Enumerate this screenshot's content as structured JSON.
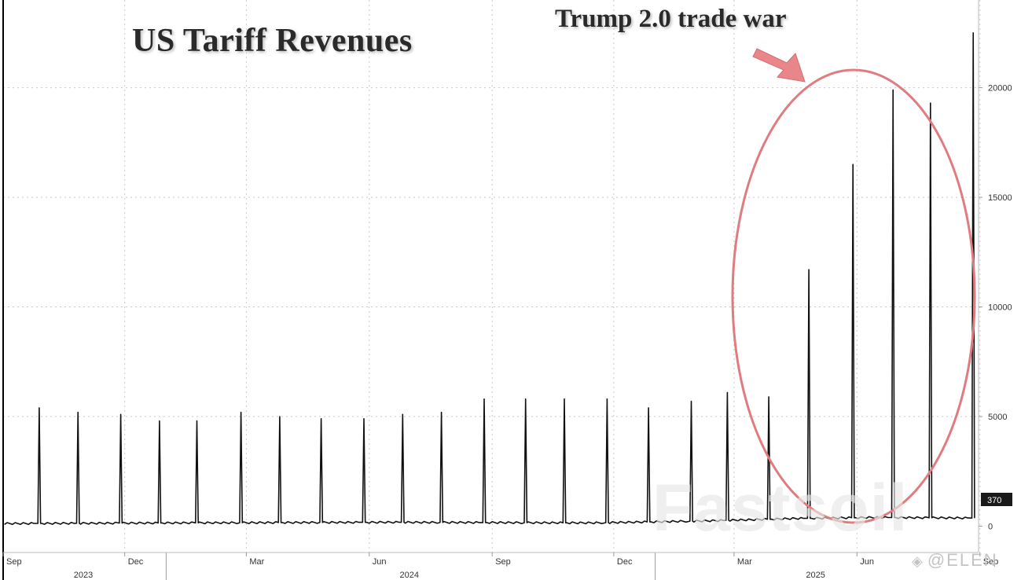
{
  "title": "US Tariff Revenues",
  "annotation": "Trump 2.0 trade war",
  "watermarks": {
    "big": "Fastsoil",
    "corner": "@ELEN",
    "corner_icon": "diamond-logo-icon"
  },
  "colors": {
    "line": "#111111",
    "grid": "#c8c8c8",
    "circle": "#e07c80",
    "arrow": "#e8868a",
    "badge": "#1a1a1a"
  },
  "chart_data": {
    "type": "line",
    "title": "US Tariff Revenues",
    "xlabel": "",
    "ylabel": "",
    "x_range": [
      "2023-09-01",
      "2025-08-31"
    ],
    "ylim": [
      -1200,
      24000
    ],
    "y_ticks": [
      0,
      5000,
      10000,
      15000,
      20000
    ],
    "y_tick_labels": [
      "0",
      "5000",
      "10000",
      "15000",
      "20000"
    ],
    "x_ticks": [
      {
        "date": "2023-09-01",
        "label": "Sep",
        "year": ""
      },
      {
        "date": "2023-12-01",
        "label": "Dec",
        "year": ""
      },
      {
        "date": "2024-03-01",
        "label": "Mar",
        "year": ""
      },
      {
        "date": "2024-06-01",
        "label": "Jun",
        "year": ""
      },
      {
        "date": "2024-09-01",
        "label": "Sep",
        "year": ""
      },
      {
        "date": "2024-12-01",
        "label": "Dec",
        "year": ""
      },
      {
        "date": "2025-03-01",
        "label": "Mar",
        "year": ""
      },
      {
        "date": "2025-06-01",
        "label": "Jun",
        "year": ""
      },
      {
        "date": "2025-09-01",
        "label": "Sep",
        "year": ""
      }
    ],
    "year_labels": [
      {
        "date": "2023-10-31",
        "label": "2023"
      },
      {
        "date": "2024-07-01",
        "label": "2024"
      },
      {
        "date": "2025-05-01",
        "label": "2025"
      }
    ],
    "year_separators": [
      "2024-01-01",
      "2025-01-01"
    ],
    "last_value": 370,
    "last_value_label": "370",
    "grid": true,
    "series": [
      {
        "baseline": [
          {
            "x": "2023-09-01",
            "y": 120
          },
          {
            "x": "2024-01-15",
            "y": 150
          },
          {
            "x": "2024-06-15",
            "y": 180
          },
          {
            "x": "2024-11-15",
            "y": 150
          },
          {
            "x": "2025-02-15",
            "y": 250
          },
          {
            "x": "2025-04-15",
            "y": 350
          },
          {
            "x": "2025-06-15",
            "y": 400
          },
          {
            "x": "2025-08-28",
            "y": 370
          }
        ],
        "spikes": [
          {
            "x": "2023-09-28",
            "y": 5400
          },
          {
            "x": "2023-10-27",
            "y": 5200
          },
          {
            "x": "2023-11-28",
            "y": 5100
          },
          {
            "x": "2023-12-27",
            "y": 4800
          },
          {
            "x": "2024-01-24",
            "y": 4800
          },
          {
            "x": "2024-02-26",
            "y": 5200
          },
          {
            "x": "2024-03-26",
            "y": 5000
          },
          {
            "x": "2024-04-26",
            "y": 4900
          },
          {
            "x": "2024-05-28",
            "y": 4900
          },
          {
            "x": "2024-06-26",
            "y": 5100
          },
          {
            "x": "2024-07-25",
            "y": 5200
          },
          {
            "x": "2024-08-26",
            "y": 5800
          },
          {
            "x": "2024-09-26",
            "y": 5800
          },
          {
            "x": "2024-10-25",
            "y": 5800
          },
          {
            "x": "2024-11-26",
            "y": 5800
          },
          {
            "x": "2024-12-27",
            "y": 5400
          },
          {
            "x": "2025-01-28",
            "y": 5700
          },
          {
            "x": "2025-02-24",
            "y": 6100
          },
          {
            "x": "2025-03-27",
            "y": 5900
          },
          {
            "x": "2025-04-26",
            "y": 11700
          },
          {
            "x": "2025-05-29",
            "y": 16500
          },
          {
            "x": "2025-06-28",
            "y": 19900
          },
          {
            "x": "2025-07-26",
            "y": 19300
          },
          {
            "x": "2025-08-27",
            "y": 22500
          }
        ]
      }
    ]
  }
}
